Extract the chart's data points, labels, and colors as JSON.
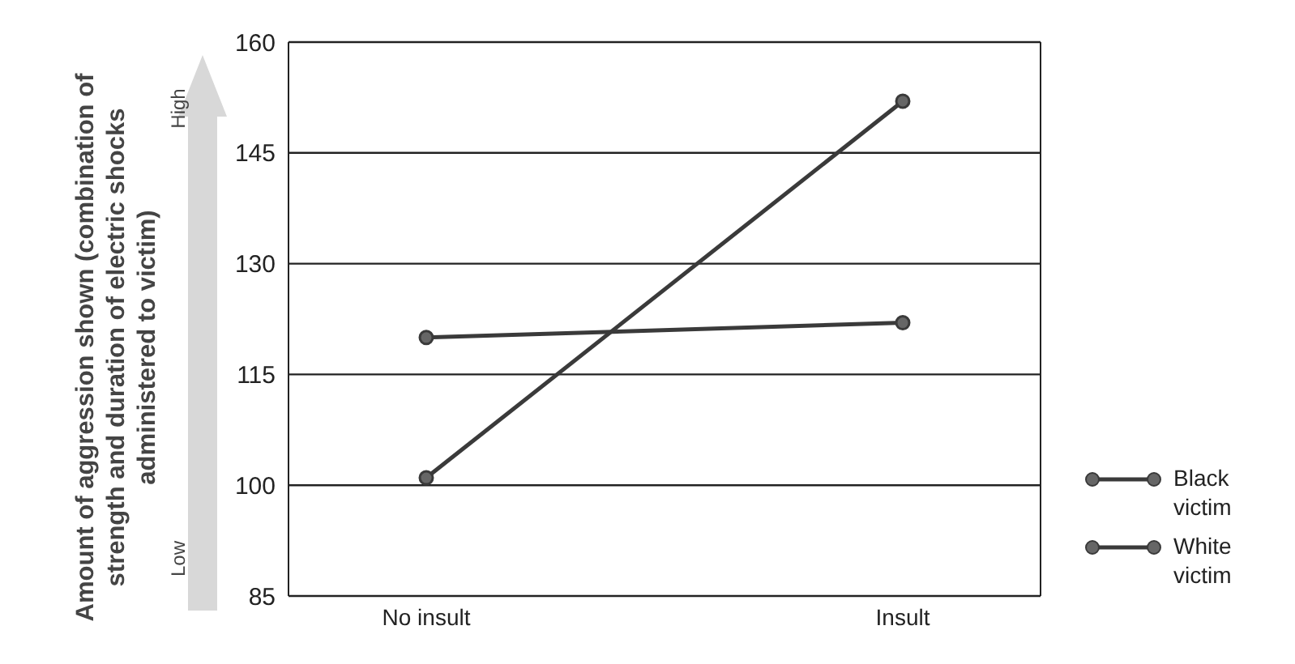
{
  "chart_data": {
    "type": "line",
    "ylabel": "Amount of aggression shown (combination of strength and duration of electric shocks administered to victim)",
    "categories": [
      "No insult",
      "Insult"
    ],
    "series": [
      {
        "name": "Black victim",
        "color": "#3a3a3a",
        "values": [
          101,
          152
        ]
      },
      {
        "name": "White victim",
        "color": "#3a3a3a",
        "values": [
          120,
          122
        ]
      }
    ],
    "ylim": [
      85,
      160
    ],
    "yticks": [
      85,
      100,
      115,
      130,
      145,
      160
    ],
    "grid": "y",
    "legend": "right",
    "marker": "circle",
    "line_style": "solid",
    "annotations": [
      "High",
      "Low"
    ]
  }
}
